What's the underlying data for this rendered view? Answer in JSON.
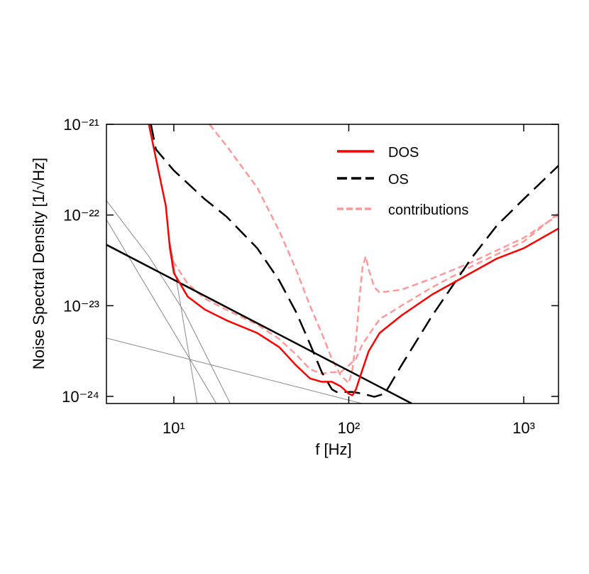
{
  "chart_data": {
    "type": "line",
    "xlabel": "f [Hz]",
    "ylabel": "Noise Spectral Density [1/√Hz]",
    "xscale": "log",
    "yscale": "log",
    "xlim": [
      4.12,
      1580
    ],
    "ylim": [
      8.35e-25,
      1e-21
    ],
    "xticks": [
      {
        "value": 10,
        "label": "10¹"
      },
      {
        "value": 100,
        "label": "10²"
      },
      {
        "value": 1000,
        "label": "10³"
      }
    ],
    "yticks": [
      {
        "value": 1e-24,
        "label": "10⁻²⁴"
      },
      {
        "value": 1e-23,
        "label": "10⁻²³"
      },
      {
        "value": 1e-22,
        "label": "10⁻²²"
      },
      {
        "value": 1e-21,
        "label": "10⁻²¹"
      }
    ],
    "legend": "upper right",
    "series": [
      {
        "name": "contributions",
        "color": "#ff9999",
        "linestyle": "short-dashed",
        "linewidth": 2.5,
        "x": [
          16,
          20,
          30,
          40,
          50,
          60,
          70,
          80,
          90,
          100,
          105,
          110,
          115,
          120,
          125,
          130,
          140,
          150,
          200,
          300,
          500,
          1000,
          1580
        ],
        "values": [
          1e-21,
          5.8e-22,
          2e-22,
          6.7e-23,
          2.5e-23,
          1e-23,
          5e-24,
          2.6e-24,
          1.7e-24,
          1.4e-24,
          2e-24,
          4.2e-24,
          1.2e-23,
          2.7e-23,
          3.5e-23,
          2.5e-23,
          1.6e-23,
          1.4e-23,
          1.5e-23,
          2e-23,
          3e-23,
          5.6e-23,
          1e-22
        ]
      },
      {
        "color": "#ff9999",
        "linestyle": "short-dashed",
        "linewidth": 2.5,
        "x": [
          9.4,
          10,
          12,
          15,
          20,
          30,
          40,
          50,
          60,
          70,
          80,
          90,
          100,
          110,
          120,
          150,
          200,
          300,
          500,
          1000,
          1580
        ],
        "values": [
          5.1e-23,
          3e-23,
          1.75e-23,
          1.2e-23,
          9e-24,
          6.2e-24,
          4.3e-24,
          2.9e-24,
          2e-24,
          1.78e-24,
          1.85e-24,
          1.85e-24,
          2.2e-24,
          2.6e-24,
          3.8e-24,
          7.1e-24,
          1e-23,
          1.6e-23,
          2.7e-23,
          5.1e-23,
          1.05e-22
        ]
      },
      {
        "color": "#888888",
        "linestyle": "solid",
        "linewidth": 1,
        "x": [
          4.12,
          7.2,
          11.5,
          21
        ],
        "values": [
          1.44e-22,
          3.5e-23,
          8.5e-24,
          8.35e-25
        ]
      },
      {
        "color": "#888888",
        "linestyle": "solid",
        "linewidth": 1,
        "x": [
          4.12,
          17.5
        ],
        "values": [
          8.9e-23,
          8.35e-25
        ]
      },
      {
        "color": "#888888",
        "linestyle": "solid",
        "linewidth": 1,
        "x": [
          9.5,
          13.6
        ],
        "values": [
          5.1e-23,
          8.35e-25
        ]
      },
      {
        "color": "#888888",
        "linestyle": "solid",
        "linewidth": 1,
        "x": [
          4.12,
          118.9
        ],
        "values": [
          4.4e-24,
          8.35e-25
        ]
      },
      {
        "color": "#000000",
        "linestyle": "solid",
        "linewidth": 2.5,
        "x": [
          4.12,
          229
        ],
        "values": [
          4.7e-23,
          8.35e-25
        ]
      },
      {
        "name": "OS",
        "color": "#000000",
        "linestyle": "dashed",
        "linewidth": 2.5,
        "x": [
          7.4,
          7.9,
          10,
          15,
          20,
          30,
          40,
          50,
          60,
          70,
          80,
          85,
          105,
          120,
          140,
          160,
          170,
          200,
          300,
          500,
          700,
          1000,
          1580
        ],
        "values": [
          1e-21,
          5.3e-22,
          3.1e-22,
          1.5e-22,
          9.6e-23,
          4.3e-23,
          1.9e-23,
          8.5e-24,
          3.8e-24,
          1.86e-24,
          1.2e-24,
          1.12e-24,
          1.12e-24,
          1.07e-24,
          9.9e-25,
          1.07e-24,
          1.29e-24,
          2.2e-24,
          7.8e-24,
          3.3e-23,
          7.6e-23,
          1.5e-22,
          3.5e-22
        ]
      },
      {
        "name": "DOS",
        "color": "#ff0000",
        "linestyle": "solid",
        "linewidth": 2.5,
        "x": [
          7.2,
          9,
          9.5,
          10,
          12,
          15,
          20,
          30,
          40,
          50,
          60,
          70,
          80,
          90,
          100,
          105,
          110,
          120,
          130,
          150,
          200,
          300,
          500,
          700,
          1000,
          1580
        ],
        "values": [
          1e-21,
          1.26e-22,
          4.3e-23,
          2.3e-23,
          1.26e-23,
          9.1e-24,
          6.9e-24,
          5e-24,
          3.5e-24,
          2.2e-24,
          1.58e-24,
          1.45e-24,
          1.45e-24,
          1.29e-24,
          1.07e-24,
          1.03e-24,
          1.2e-24,
          2e-24,
          3.16e-24,
          5e-24,
          7.8e-24,
          1.33e-23,
          2.3e-23,
          3.3e-23,
          4.3e-23,
          7.1e-23
        ]
      }
    ]
  }
}
